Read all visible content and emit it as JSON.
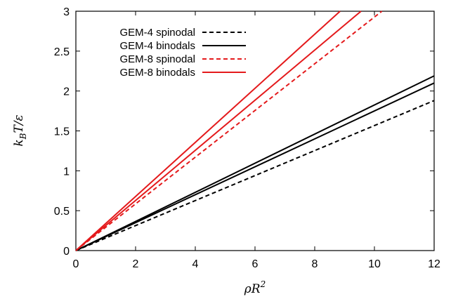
{
  "chart_data": {
    "type": "line",
    "xlabel": {
      "base": "ρR",
      "sup": "2"
    },
    "ylabel": {
      "main": "k",
      "sub": "B",
      "rest": "T/ε"
    },
    "xlim": [
      0,
      12
    ],
    "ylim": [
      0,
      3
    ],
    "xticks": [
      "0",
      "2",
      "4",
      "6",
      "8",
      "10",
      "12"
    ],
    "yticks": [
      "0",
      "0.5",
      "1",
      "1.5",
      "2",
      "2.5",
      "3"
    ],
    "legend_position": "top-left",
    "legend": [
      {
        "label": "GEM-4 spinodal",
        "color": "#000000",
        "dash": "dashed"
      },
      {
        "label": "GEM-4 binodals",
        "color": "#000000",
        "dash": "solid"
      },
      {
        "label": "GEM-8 spinodal",
        "color": "#e41a1c",
        "dash": "dashed"
      },
      {
        "label": "GEM-8 binodals",
        "color": "#e41a1c",
        "dash": "solid"
      }
    ],
    "series": [
      {
        "legend_index": 0,
        "color": "#000000",
        "dash": "dashed",
        "x": [
          0,
          12
        ],
        "y": [
          0,
          1.88
        ]
      },
      {
        "legend_index": 1,
        "color": "#000000",
        "dash": "solid",
        "x": [
          0,
          12
        ],
        "y": [
          0,
          2.19
        ]
      },
      {
        "legend_index": 1,
        "color": "#000000",
        "dash": "solid",
        "x": [
          0,
          12
        ],
        "y": [
          0,
          2.1
        ]
      },
      {
        "legend_index": 2,
        "color": "#e41a1c",
        "dash": "dashed",
        "x": [
          0,
          10.25
        ],
        "y": [
          0,
          3
        ]
      },
      {
        "legend_index": 3,
        "color": "#e41a1c",
        "dash": "solid",
        "x": [
          0,
          8.85
        ],
        "y": [
          0,
          3
        ]
      },
      {
        "legend_index": 3,
        "color": "#e41a1c",
        "dash": "solid",
        "x": [
          0,
          9.55
        ],
        "y": [
          0,
          3
        ]
      }
    ]
  }
}
